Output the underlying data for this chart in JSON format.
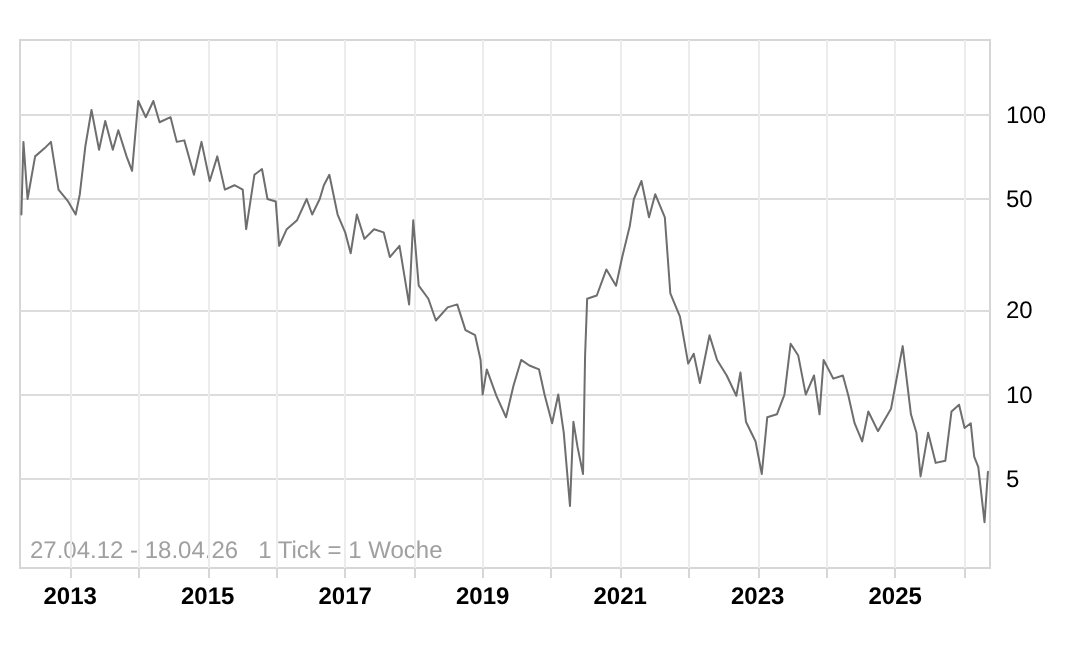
{
  "chart_data": {
    "type": "line",
    "log": "y",
    "grid": true,
    "tick_labels": "xy",
    "annotations": [
      "27.04.12 - 18.04.26   1 Tick = 1 Woche"
    ],
    "xlim": [
      2012.27,
      2026.38
    ],
    "xticks": [
      2013,
      {
        "value": 2014,
        "label": null
      },
      2015,
      {
        "value": 2016,
        "label": null
      },
      2017,
      {
        "value": 2018,
        "label": null
      },
      2019,
      {
        "value": 2020,
        "label": null
      },
      2021,
      {
        "value": 2022,
        "label": null
      },
      2023,
      {
        "value": 2024,
        "label": null
      },
      2025,
      {
        "value": 2026,
        "label": null
      }
    ],
    "ylim": [
      2.4,
      185
    ],
    "yticks": [
      5,
      10,
      20,
      50,
      100
    ],
    "series": [
      {
        "color": "#6e6e6e",
        "line_style": "solid",
        "marker": "none",
        "x": [
          2012.29,
          2012.32,
          2012.38,
          2012.49,
          2012.63,
          2012.72,
          2012.83,
          2012.97,
          2013.08,
          2013.14,
          2013.22,
          2013.31,
          2013.42,
          2013.51,
          2013.62,
          2013.7,
          2013.82,
          2013.9,
          2013.99,
          2014.1,
          2014.21,
          2014.3,
          2014.46,
          2014.55,
          2014.66,
          2014.8,
          2014.91,
          2015.03,
          2015.14,
          2015.25,
          2015.39,
          2015.51,
          2015.56,
          2015.68,
          2015.79,
          2015.87,
          2015.99,
          2016.04,
          2016.15,
          2016.3,
          2016.44,
          2016.52,
          2016.63,
          2016.69,
          2016.77,
          2016.89,
          2017.0,
          2017.08,
          2017.17,
          2017.28,
          2017.42,
          2017.56,
          2017.65,
          2017.79,
          2017.93,
          2017.99,
          2018.07,
          2018.21,
          2018.32,
          2018.49,
          2018.63,
          2018.75,
          2018.89,
          2018.97,
          2019.0,
          2019.06,
          2019.2,
          2019.34,
          2019.45,
          2019.56,
          2019.68,
          2019.82,
          2019.9,
          2020.01,
          2020.1,
          2020.18,
          2020.27,
          2020.32,
          2020.38,
          2020.46,
          2020.49,
          2020.52,
          2020.66,
          2020.8,
          2020.94,
          2021.03,
          2021.14,
          2021.2,
          2021.31,
          2021.42,
          2021.51,
          2021.65,
          2021.73,
          2021.87,
          2021.99,
          2022.07,
          2022.16,
          2022.3,
          2022.41,
          2022.55,
          2022.69,
          2022.75,
          2022.83,
          2022.97,
          2023.06,
          2023.14,
          2023.28,
          2023.39,
          2023.48,
          2023.59,
          2023.7,
          2023.82,
          2023.9,
          2023.96,
          2024.1,
          2024.24,
          2024.32,
          2024.41,
          2024.52,
          2024.61,
          2024.75,
          2024.94,
          2025.03,
          2025.11,
          2025.23,
          2025.31,
          2025.37,
          2025.48,
          2025.59,
          2025.73,
          2025.82,
          2025.93,
          2026.01,
          2026.1,
          2026.15,
          2026.21,
          2026.3,
          2026.35
        ],
        "values": [
          44,
          80,
          50,
          71,
          76,
          80,
          54,
          49,
          44,
          52,
          77,
          104,
          75,
          95,
          75,
          88,
          71,
          63,
          112,
          98,
          112,
          94,
          98,
          80,
          81,
          61,
          80,
          58,
          71,
          54,
          56,
          54,
          39,
          61,
          64,
          50,
          49,
          34,
          39,
          42,
          50,
          44,
          50,
          56,
          61,
          44,
          38,
          32,
          44,
          36,
          39,
          38,
          31,
          34,
          21,
          42,
          24.5,
          22,
          18.4,
          20.5,
          21,
          17,
          16.3,
          13.3,
          10,
          12.3,
          9.9,
          8.3,
          10.8,
          13.3,
          12.7,
          12.3,
          10,
          7.9,
          10,
          7.3,
          4.0,
          8,
          6.5,
          5.2,
          13.8,
          22,
          22.6,
          28,
          24.5,
          31,
          40,
          50,
          58,
          43,
          52,
          43,
          23,
          19,
          12.9,
          14,
          11,
          16.3,
          13.3,
          11.7,
          9.9,
          12,
          8,
          6.8,
          5.2,
          8.3,
          8.5,
          10,
          15.2,
          13.8,
          10,
          11.7,
          8.5,
          13.3,
          11.4,
          11.7,
          9.9,
          7.9,
          6.8,
          8.7,
          7.4,
          8.9,
          11.7,
          14.9,
          8.5,
          7.3,
          5.1,
          7.3,
          5.7,
          5.8,
          8.7,
          9.2,
          7.6,
          7.9,
          6.0,
          5.5,
          3.5,
          5.3
        ]
      }
    ]
  }
}
